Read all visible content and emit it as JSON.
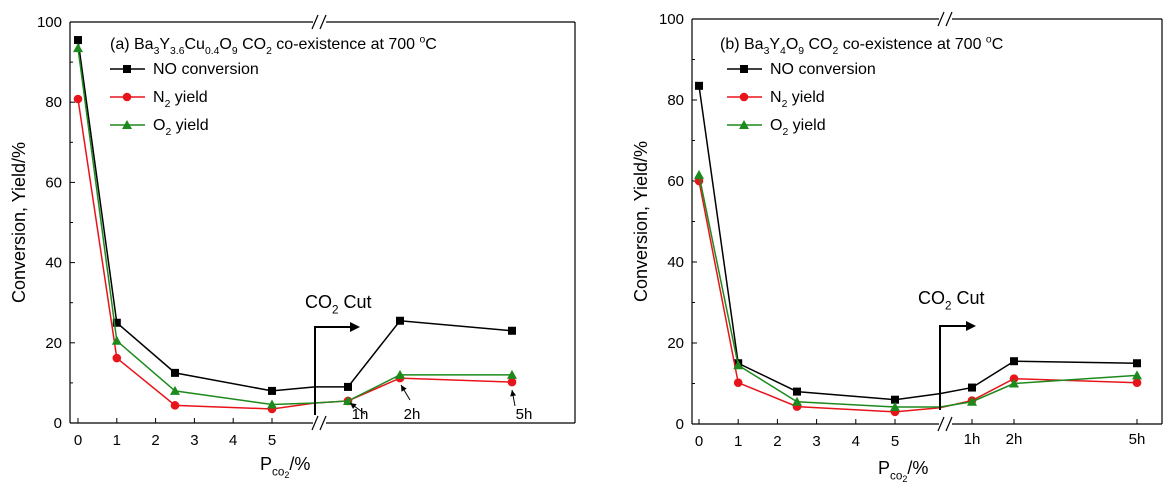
{
  "chart_data": [
    {
      "type": "line",
      "panel_label": "(a)",
      "title_parts": [
        {
          "t": "(a) Ba"
        },
        {
          "t": "3",
          "sub": true
        },
        {
          "t": "Y"
        },
        {
          "t": "3.6",
          "sub": true
        },
        {
          "t": "Cu"
        },
        {
          "t": "0.4",
          "sub": true
        },
        {
          "t": "O"
        },
        {
          "t": "9",
          "sub": true
        },
        {
          "t": " CO"
        },
        {
          "t": "2",
          "sub": true
        },
        {
          "t": " co-existence at 700 "
        },
        {
          "t": "o",
          "sup": true
        },
        {
          "t": "C"
        }
      ],
      "ylabel": "Conversion, Yield/%",
      "xlabel_parts": [
        {
          "t": "P"
        },
        {
          "t": "co",
          "sub": true
        },
        {
          "t": "2",
          "subsub": true
        },
        {
          "t": "/%"
        }
      ],
      "ylim": [
        0,
        100
      ],
      "yticks": [
        0,
        20,
        40,
        60,
        80,
        100
      ],
      "xlim_left": [
        -0.2,
        5.5
      ],
      "xticks_left": [
        0,
        1,
        2,
        3,
        4,
        5
      ],
      "time_labels": [
        "1h",
        "2h",
        "5h"
      ],
      "time_positions": [
        1,
        2,
        5
      ],
      "break_mark": "//",
      "legend": [
        {
          "name": "NO conversion",
          "color": "#000000",
          "marker": "square"
        },
        {
          "name_parts": [
            {
              "t": "N"
            },
            {
              "t": "2",
              "sub": true
            },
            {
              "t": " yield"
            }
          ],
          "color": "#e8141b",
          "marker": "circle"
        },
        {
          "name_parts": [
            {
              "t": "O"
            },
            {
              "t": "2",
              "sub": true
            },
            {
              "t": " yield"
            }
          ],
          "color": "#1d8a1d",
          "marker": "triangle"
        }
      ],
      "series": [
        {
          "name": "NO conversion",
          "color": "#000000",
          "marker": "square",
          "x": [
            0,
            1,
            2.5,
            5,
            "cut",
            "1h",
            "2h",
            "5h"
          ],
          "y": [
            95.5,
            25,
            12.5,
            8,
            9,
            9,
            25.5,
            23
          ]
        },
        {
          "name": "N2 yield",
          "color": "#e8141b",
          "marker": "circle",
          "x": [
            0,
            1,
            2.5,
            5,
            "cut",
            "1h",
            "2h",
            "5h"
          ],
          "y": [
            80.8,
            16.2,
            4.4,
            3.5,
            5,
            5.5,
            11.2,
            10.2
          ]
        },
        {
          "name": "O2 yield",
          "color": "#1d8a1d",
          "marker": "triangle",
          "x": [
            0,
            1,
            2.5,
            5,
            "cut",
            "1h",
            "2h",
            "5h"
          ],
          "y": [
            93.5,
            20.5,
            8,
            4.6,
            5,
            5.5,
            12,
            12
          ]
        }
      ],
      "annotation_parts": [
        {
          "t": "CO"
        },
        {
          "t": "2",
          "sub": true
        },
        {
          "t": " Cut"
        }
      ]
    },
    {
      "type": "line",
      "panel_label": "(b)",
      "title_parts": [
        {
          "t": "(b) Ba"
        },
        {
          "t": "3",
          "sub": true
        },
        {
          "t": "Y"
        },
        {
          "t": "4",
          "sub": true
        },
        {
          "t": "O"
        },
        {
          "t": "9",
          "sub": true
        },
        {
          "t": " CO"
        },
        {
          "t": "2",
          "sub": true
        },
        {
          "t": " co-existence at 700 "
        },
        {
          "t": "o",
          "sup": true
        },
        {
          "t": "C"
        }
      ],
      "ylabel": "Conversion, Yield/%",
      "xlabel_parts": [
        {
          "t": "P"
        },
        {
          "t": "co",
          "sub": true
        },
        {
          "t": "2",
          "subsub": true
        },
        {
          "t": "/%"
        }
      ],
      "ylim": [
        0,
        100
      ],
      "yticks": [
        0,
        20,
        40,
        60,
        80,
        100
      ],
      "xlim_left": [
        -0.2,
        5.5
      ],
      "xticks_left": [
        0,
        1,
        2,
        3,
        4,
        5
      ],
      "time_labels": [
        "1h",
        "2h",
        "5h"
      ],
      "time_positions": [
        1,
        2,
        5
      ],
      "break_mark": "//",
      "legend": [
        {
          "name": "NO conversion",
          "color": "#000000",
          "marker": "square"
        },
        {
          "name_parts": [
            {
              "t": "N"
            },
            {
              "t": "2",
              "sub": true
            },
            {
              "t": " yield"
            }
          ],
          "color": "#e8141b",
          "marker": "circle"
        },
        {
          "name_parts": [
            {
              "t": "O"
            },
            {
              "t": "2",
              "sub": true
            },
            {
              "t": " yield"
            }
          ],
          "color": "#1d8a1d",
          "marker": "triangle"
        }
      ],
      "series": [
        {
          "name": "NO conversion",
          "color": "#000000",
          "marker": "square",
          "x": [
            0,
            1,
            2.5,
            5,
            "cut",
            "1h",
            "2h",
            "5h"
          ],
          "y": [
            83.5,
            15,
            8,
            6,
            7.5,
            9,
            15.5,
            15
          ]
        },
        {
          "name": "N2 yield",
          "color": "#e8141b",
          "marker": "circle",
          "x": [
            0,
            1,
            2.5,
            5,
            "cut",
            "1h",
            "2h",
            "5h"
          ],
          "y": [
            60,
            10.2,
            4.3,
            3,
            4,
            5.8,
            11.2,
            10.2
          ]
        },
        {
          "name": "O2 yield",
          "color": "#1d8a1d",
          "marker": "triangle",
          "x": [
            0,
            1,
            2.5,
            5,
            "cut",
            "1h",
            "2h",
            "5h"
          ],
          "y": [
            61.5,
            14.5,
            5.5,
            4.2,
            4.2,
            5.5,
            10,
            12
          ]
        }
      ],
      "annotation_parts": [
        {
          "t": "CO"
        },
        {
          "t": "2",
          "sub": true
        },
        {
          "t": " Cut"
        }
      ]
    }
  ]
}
